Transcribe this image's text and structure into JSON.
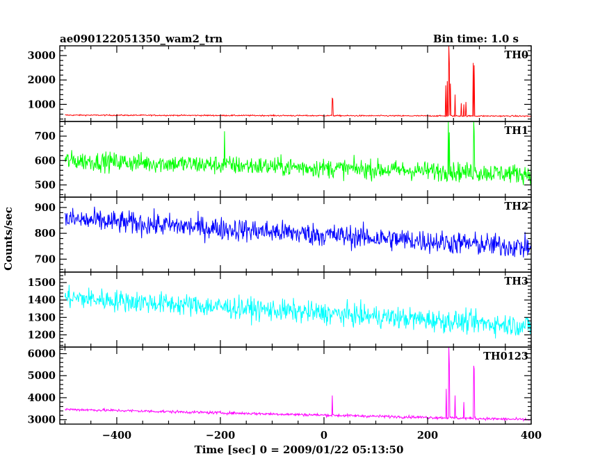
{
  "header": {
    "title": "ae090122051350_wam2_trn",
    "bin_time": "Bin time: 1.0 s"
  },
  "chart_data": {
    "type": "line",
    "ylabel": "Counts/sec",
    "xlabel": "Time [sec] 0 = 2009/01/22 05:13:50",
    "xlim": [
      -510,
      400
    ],
    "x_ticks": [
      -400,
      -200,
      0,
      200,
      400
    ],
    "x_step_sec": 1.0,
    "panels": [
      {
        "name": "TH0",
        "color": "#ff0000",
        "ylim": [
          300,
          3400
        ],
        "y_ticks": [
          1000,
          2000,
          3000
        ],
        "baseline_start": 560,
        "baseline_end": 520,
        "noise": 18,
        "spikes": [
          {
            "x": 16,
            "y": 1250
          },
          {
            "x": 17,
            "y": 1230
          },
          {
            "x": 235,
            "y": 1780
          },
          {
            "x": 238,
            "y": 1950
          },
          {
            "x": 241,
            "y": 3400
          },
          {
            "x": 242,
            "y": 2700
          },
          {
            "x": 244,
            "y": 1850
          },
          {
            "x": 253,
            "y": 1400
          },
          {
            "x": 265,
            "y": 1050
          },
          {
            "x": 270,
            "y": 1000
          },
          {
            "x": 274,
            "y": 1100
          },
          {
            "x": 288,
            "y": 2700
          },
          {
            "x": 290,
            "y": 2600
          }
        ]
      },
      {
        "name": "TH1",
        "color": "#00ff00",
        "ylim": [
          450,
          760
        ],
        "y_ticks": [
          500,
          600,
          700
        ],
        "baseline_start": 600,
        "baseline_end": 545,
        "noise": 28,
        "spikes": [
          {
            "x": -192,
            "y": 720
          },
          {
            "x": 240,
            "y": 760
          },
          {
            "x": 242,
            "y": 715
          },
          {
            "x": 289,
            "y": 760
          },
          {
            "x": 290,
            "y": 720
          }
        ]
      },
      {
        "name": "TH2",
        "color": "#0000ff",
        "ylim": [
          650,
          940
        ],
        "y_ticks": [
          700,
          800,
          900
        ],
        "baseline_start": 855,
        "baseline_end": 745,
        "noise": 32,
        "spikes": []
      },
      {
        "name": "TH3",
        "color": "#00ffff",
        "ylim": [
          1130,
          1560
        ],
        "y_ticks": [
          1200,
          1300,
          1400,
          1500
        ],
        "baseline_start": 1415,
        "baseline_end": 1250,
        "noise": 45,
        "spikes": []
      },
      {
        "name": "TH0123",
        "color": "#ff00ff",
        "ylim": [
          2800,
          6300
        ],
        "y_ticks": [
          3000,
          4000,
          5000,
          6000
        ],
        "baseline_start": 3470,
        "baseline_end": 3000,
        "noise": 45,
        "spikes": [
          {
            "x": 16,
            "y": 4100
          },
          {
            "x": 236,
            "y": 4400
          },
          {
            "x": 241,
            "y": 6300
          },
          {
            "x": 242,
            "y": 5500
          },
          {
            "x": 253,
            "y": 4100
          },
          {
            "x": 270,
            "y": 3800
          },
          {
            "x": 289,
            "y": 5450
          },
          {
            "x": 290,
            "y": 5300
          }
        ]
      }
    ]
  }
}
